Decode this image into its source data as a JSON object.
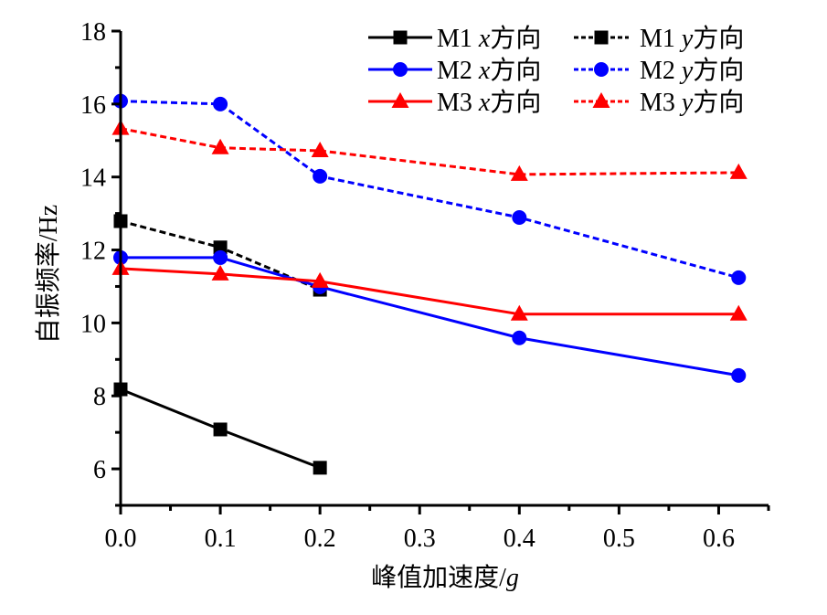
{
  "chart_data": {
    "type": "line",
    "title": "",
    "xlabel": "峰值加速度/g",
    "xlabel_main": "峰值加速度/",
    "xlabel_italic": "g",
    "ylabel": "自振频率/Hz",
    "xlim": [
      0.0,
      0.65
    ],
    "ylim": [
      5,
      18
    ],
    "x_ticks": [
      0.0,
      0.1,
      0.2,
      0.3,
      0.4,
      0.5,
      0.6
    ],
    "x_tick_labels": [
      "0.0",
      "0.1",
      "0.2",
      "0.3",
      "0.4",
      "0.5",
      "0.6"
    ],
    "y_ticks": [
      6,
      8,
      10,
      12,
      14,
      16,
      18
    ],
    "y_tick_labels": [
      "6",
      "8",
      "10",
      "12",
      "14",
      "16",
      "18"
    ],
    "grid": false,
    "legend_position": "top-right",
    "series": [
      {
        "name": "M1 x方向",
        "model": "M1",
        "dir": "x",
        "suffix": "方向",
        "color": "#000000",
        "dashed": false,
        "marker": "square",
        "x": [
          0.0,
          0.1,
          0.2
        ],
        "values": [
          8.18,
          7.08,
          6.03
        ]
      },
      {
        "name": "M1 y方向",
        "model": "M1",
        "dir": "y",
        "suffix": "方向",
        "color": "#000000",
        "dashed": true,
        "marker": "square",
        "x": [
          0.0,
          0.1,
          0.2
        ],
        "values": [
          12.79,
          12.07,
          10.91
        ]
      },
      {
        "name": "M2 x方向",
        "model": "M2",
        "dir": "x",
        "suffix": "方向",
        "color": "#0000ff",
        "dashed": false,
        "marker": "circle",
        "x": [
          0.0,
          0.1,
          0.2,
          0.4,
          0.62
        ],
        "values": [
          11.79,
          11.79,
          10.99,
          9.59,
          8.56
        ]
      },
      {
        "name": "M2 y方向",
        "model": "M2",
        "dir": "y",
        "suffix": "方向",
        "color": "#0000ff",
        "dashed": true,
        "marker": "circle",
        "x": [
          0.0,
          0.1,
          0.2,
          0.4,
          0.62
        ],
        "values": [
          16.08,
          16.0,
          14.02,
          12.89,
          11.24
        ]
      },
      {
        "name": "M3 x方向",
        "model": "M3",
        "dir": "x",
        "suffix": "方向",
        "color": "#ff0000",
        "dashed": false,
        "marker": "triangle",
        "x": [
          0.0,
          0.1,
          0.2,
          0.4,
          0.62
        ],
        "values": [
          11.49,
          11.34,
          11.14,
          10.24,
          10.24
        ]
      },
      {
        "name": "M3 y方向",
        "model": "M3",
        "dir": "y",
        "suffix": "方向",
        "color": "#ff0000",
        "dashed": true,
        "marker": "triangle",
        "x": [
          0.0,
          0.1,
          0.2,
          0.4,
          0.62
        ],
        "values": [
          15.33,
          14.8,
          14.72,
          14.07,
          14.12
        ]
      }
    ]
  }
}
